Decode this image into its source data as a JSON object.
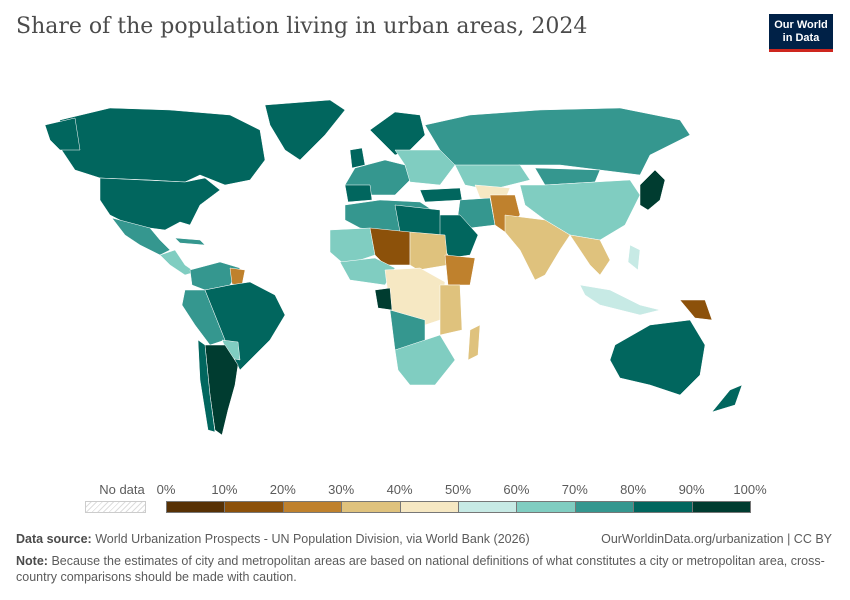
{
  "title": "Share of the population living in urban areas, 2024",
  "logo": {
    "line1": "Our World",
    "line2": "in Data"
  },
  "legend": {
    "no_data_label": "No data",
    "ticks": [
      "0%",
      "10%",
      "20%",
      "30%",
      "40%",
      "50%",
      "60%",
      "70%",
      "80%",
      "90%",
      "100%"
    ],
    "bins": [
      {
        "range": "0-10%",
        "color": "#573105"
      },
      {
        "range": "10-20%",
        "color": "#8c510a"
      },
      {
        "range": "20-30%",
        "color": "#bf812d"
      },
      {
        "range": "30-40%",
        "color": "#dfc27d"
      },
      {
        "range": "40-50%",
        "color": "#f6e8c3"
      },
      {
        "range": "50-60%",
        "color": "#c7eae5"
      },
      {
        "range": "60-70%",
        "color": "#80cdc1"
      },
      {
        "range": "70-80%",
        "color": "#35978f"
      },
      {
        "range": "80-90%",
        "color": "#01665e"
      },
      {
        "range": "90-100%",
        "color": "#003c30"
      }
    ]
  },
  "footer": {
    "source_label": "Data source:",
    "source_text": "World Urbanization Prospects - UN Population Division, via World Bank (2026)",
    "url": "OurWorldinData.org/urbanization | CC BY",
    "note_label": "Note:",
    "note_text": "Because the estimates of city and metropolitan areas are based on national definitions of what constitutes a city or metropolitan area, cross-country comparisons should be made with caution."
  }
}
